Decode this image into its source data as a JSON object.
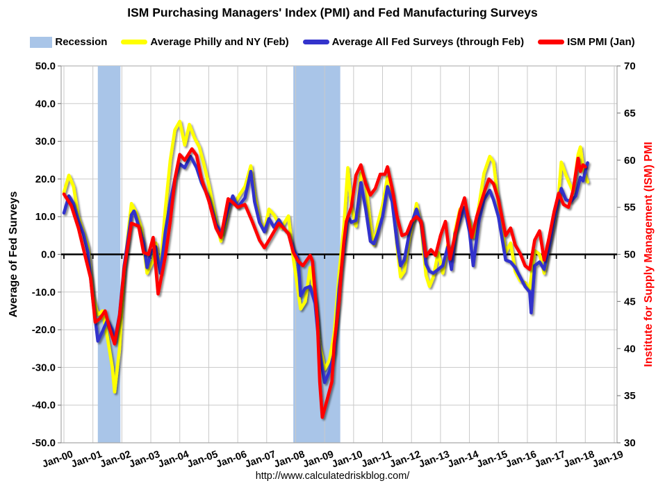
{
  "page": {
    "title": "ISM Purchasing Managers' Index (PMI) and Fed Manufacturing Surveys",
    "footer_url": "http://www.calculatedriskblog.com/"
  },
  "legend": [
    {
      "label": "Recession",
      "color": "#A9C5E8",
      "type": "box"
    },
    {
      "label": "Average Philly and NY (Feb)",
      "color": "#FFFF00",
      "type": "line"
    },
    {
      "label": "Average All Fed Surveys (through Feb)",
      "color": "#3333CC",
      "type": "line"
    },
    {
      "label": "ISM PMI (Jan)",
      "color": "#FF0000",
      "type": "line"
    }
  ],
  "chart_data": {
    "type": "line",
    "title": "ISM Purchasing Managers' Index (PMI) and Fed Manufacturing Surveys",
    "grid_color": "#C9C9C9",
    "border_color": "#A6A6A6",
    "zero_line_color": "#000000",
    "recession_color": "#A9C5E8",
    "left_axis": {
      "label": "Average of Fed Surveys",
      "min": -50,
      "max": 50,
      "tick_step": 10,
      "tick_values": [
        50,
        40,
        30,
        20,
        10,
        0,
        -10,
        -20,
        -30,
        -40,
        -50
      ],
      "tick_labels": [
        "50.0",
        "40.0",
        "30.0",
        "20.0",
        "10.0",
        "0.0",
        "-10.0",
        "-20.0",
        "-30.0",
        "-40.0",
        "-50.0"
      ],
      "color": "#000000"
    },
    "right_axis": {
      "label": "Institute for Supply Management (ISM) PMI",
      "min": 30,
      "max": 70,
      "tick_step": 5,
      "tick_values": [
        70,
        65,
        60,
        55,
        50,
        45,
        40,
        35,
        30
      ],
      "tick_labels": [
        "70",
        "65",
        "60",
        "55",
        "50",
        "45",
        "40",
        "35",
        "30"
      ],
      "color": "#FF0000"
    },
    "x_axis": {
      "tick_years": [
        2000,
        2001,
        2002,
        2003,
        2004,
        2005,
        2006,
        2007,
        2008,
        2009,
        2010,
        2011,
        2012,
        2013,
        2014,
        2015,
        2016,
        2017,
        2018,
        2019
      ],
      "tick_labels": [
        "Jan-00",
        "Jan-01",
        "Jan-02",
        "Jan-03",
        "Jan-04",
        "Jan-05",
        "Jan-06",
        "Jan-07",
        "Jan-08",
        "Jan-09",
        "Jan-10",
        "Jan-11",
        "Jan-12",
        "Jan-13",
        "Jan-14",
        "Jan-15",
        "Jan-16",
        "Jan-17",
        "Jan-18",
        "Jan-19"
      ]
    },
    "recession_bands": [
      {
        "from": 2001.17,
        "to": 2001.95
      },
      {
        "from": 2007.92,
        "to": 2009.54
      }
    ],
    "series": [
      {
        "name": "Average Philly and NY (Feb)",
        "axis": "left",
        "color": "#FFFF00",
        "x": [
          2000.0,
          2000.17,
          2000.33,
          2000.5,
          2000.67,
          2000.83,
          2001.0,
          2001.17,
          2001.33,
          2001.5,
          2001.67,
          2001.75,
          2001.92,
          2002.08,
          2002.33,
          2002.5,
          2002.67,
          2002.87,
          2003.08,
          2003.17,
          2003.33,
          2003.5,
          2003.67,
          2003.83,
          2004.0,
          2004.17,
          2004.33,
          2004.5,
          2004.67,
          2004.83,
          2005.0,
          2005.25,
          2005.42,
          2005.58,
          2005.75,
          2005.92,
          2006.08,
          2006.25,
          2006.45,
          2006.58,
          2006.75,
          2006.92,
          2007.08,
          2007.25,
          2007.5,
          2007.75,
          2007.92,
          2008.17,
          2008.33,
          2008.5,
          2008.67,
          2008.83,
          2009.0,
          2009.17,
          2009.33,
          2009.5,
          2009.67,
          2009.8,
          2009.92,
          2010.08,
          2010.25,
          2010.42,
          2010.58,
          2010.7,
          2010.83,
          2011.0,
          2011.17,
          2011.33,
          2011.5,
          2011.62,
          2011.75,
          2011.92,
          2012.08,
          2012.17,
          2012.33,
          2012.5,
          2012.62,
          2012.75,
          2012.92,
          2013.08,
          2013.25,
          2013.38,
          2013.5,
          2013.67,
          2013.83,
          2014.0,
          2014.13,
          2014.33,
          2014.5,
          2014.7,
          2014.83,
          2015.0,
          2015.25,
          2015.42,
          2015.58,
          2015.75,
          2015.92,
          2016.08,
          2016.25,
          2016.42,
          2016.58,
          2016.75,
          2016.92,
          2017.08,
          2017.17,
          2017.33,
          2017.5,
          2017.58,
          2017.75,
          2017.83,
          2017.92,
          2018.0,
          2018.08
        ],
        "y": [
          16.5,
          21.0,
          18.0,
          10.0,
          6.0,
          2.0,
          -11.0,
          -16.0,
          -15.0,
          -22.0,
          -30.0,
          -36.5,
          -25.0,
          -4.0,
          13.5,
          11.0,
          7.0,
          -5.0,
          -1.5,
          3.0,
          -3.5,
          12.0,
          25.0,
          33.0,
          35.3,
          29.0,
          34.5,
          31.0,
          28.5,
          24.0,
          18.5,
          9.0,
          3.5,
          8.0,
          14.5,
          14.0,
          16.0,
          18.0,
          23.5,
          16.0,
          9.0,
          6.5,
          12.0,
          10.5,
          7.0,
          10.2,
          -1.0,
          -14.5,
          -12.5,
          -3.5,
          -12.0,
          -24.0,
          -30.5,
          -28.0,
          -21.0,
          -5.0,
          8.0,
          23.0,
          13.0,
          7.5,
          21.5,
          19.0,
          8.0,
          2.5,
          8.0,
          13.0,
          20.5,
          16.0,
          2.0,
          -6.0,
          -4.5,
          4.0,
          9.5,
          13.5,
          7.5,
          -5.5,
          -8.5,
          -6.0,
          0.5,
          -5.0,
          2.5,
          -1.5,
          6.0,
          12.0,
          11.0,
          9.0,
          4.5,
          13.0,
          21.5,
          26.0,
          24.5,
          13.5,
          0.5,
          3.0,
          -4.5,
          -7.0,
          -7.5,
          -9.0,
          1.0,
          0.0,
          -5.0,
          2.5,
          8.5,
          16.0,
          24.5,
          21.0,
          18.0,
          16.5,
          26.5,
          28.5,
          23.0,
          21.0,
          19.2
        ]
      },
      {
        "name": "Average All Fed Surveys (through Feb)",
        "axis": "left",
        "color": "#3333CC",
        "x": [
          2000.0,
          2000.17,
          2000.33,
          2000.5,
          2000.67,
          2000.83,
          2001.0,
          2001.17,
          2001.33,
          2001.5,
          2001.67,
          2001.75,
          2001.92,
          2002.08,
          2002.33,
          2002.42,
          2002.58,
          2002.75,
          2002.87,
          2003.0,
          2003.17,
          2003.33,
          2003.5,
          2003.67,
          2003.83,
          2004.0,
          2004.17,
          2004.37,
          2004.58,
          2004.75,
          2005.0,
          2005.25,
          2005.45,
          2005.67,
          2005.83,
          2006.0,
          2006.25,
          2006.45,
          2006.58,
          2006.75,
          2006.92,
          2007.08,
          2007.25,
          2007.42,
          2007.58,
          2007.75,
          2007.92,
          2008.08,
          2008.17,
          2008.33,
          2008.5,
          2008.67,
          2008.83,
          2009.0,
          2009.17,
          2009.33,
          2009.5,
          2009.67,
          2009.8,
          2009.92,
          2010.08,
          2010.25,
          2010.42,
          2010.58,
          2010.7,
          2010.83,
          2011.0,
          2011.17,
          2011.33,
          2011.5,
          2011.62,
          2011.75,
          2011.92,
          2012.08,
          2012.17,
          2012.33,
          2012.5,
          2012.62,
          2012.75,
          2012.92,
          2013.08,
          2013.25,
          2013.38,
          2013.5,
          2013.67,
          2013.83,
          2014.0,
          2014.13,
          2014.33,
          2014.5,
          2014.7,
          2014.83,
          2015.0,
          2015.25,
          2015.42,
          2015.58,
          2015.75,
          2015.92,
          2016.08,
          2016.13,
          2016.25,
          2016.42,
          2016.58,
          2016.75,
          2016.92,
          2017.08,
          2017.17,
          2017.33,
          2017.5,
          2017.67,
          2017.83,
          2017.92,
          2018.0,
          2018.08
        ],
        "y": [
          11.0,
          15.5,
          13.5,
          9.0,
          5.5,
          0.5,
          -12.0,
          -23.0,
          -20.5,
          -17.5,
          -20.0,
          -23.0,
          -16.0,
          -3.0,
          10.5,
          11.5,
          7.5,
          3.0,
          -3.5,
          0.5,
          2.0,
          -5.0,
          6.0,
          14.0,
          20.0,
          24.0,
          23.0,
          26.0,
          23.0,
          19.0,
          15.0,
          8.0,
          5.5,
          12.0,
          15.5,
          12.5,
          15.0,
          22.0,
          14.0,
          8.5,
          6.0,
          9.5,
          7.2,
          9.2,
          7.0,
          5.5,
          1.5,
          -1.0,
          -11.0,
          -9.0,
          -8.5,
          -13.0,
          -26.0,
          -34.0,
          -31.0,
          -26.0,
          -9.0,
          2.0,
          10.0,
          8.5,
          9.0,
          19.0,
          12.0,
          3.5,
          2.8,
          5.5,
          10.0,
          18.0,
          14.0,
          3.0,
          -3.0,
          -1.5,
          5.5,
          10.0,
          12.0,
          8.0,
          -2.5,
          -4.5,
          -5.0,
          -4.0,
          -3.0,
          2.0,
          -4.0,
          5.5,
          9.0,
          12.5,
          6.0,
          -3.0,
          9.0,
          14.5,
          17.0,
          14.5,
          10.0,
          -1.5,
          -2.0,
          -3.5,
          -6.0,
          -8.5,
          -10.0,
          -15.5,
          -3.0,
          -2.0,
          -4.0,
          2.0,
          9.0,
          15.0,
          17.5,
          14.5,
          14.0,
          15.5,
          20.5,
          19.5,
          22.0,
          24.3
        ]
      },
      {
        "name": "ISM PMI (Jan)",
        "axis": "right",
        "color": "#FF0000",
        "x": [
          2000.0,
          2000.25,
          2000.5,
          2000.75,
          2000.92,
          2001.08,
          2001.25,
          2001.42,
          2001.58,
          2001.75,
          2001.92,
          2002.08,
          2002.33,
          2002.58,
          2002.75,
          2002.92,
          2003.08,
          2003.25,
          2003.5,
          2003.67,
          2003.83,
          2004.0,
          2004.17,
          2004.42,
          2004.58,
          2004.75,
          2005.0,
          2005.25,
          2005.42,
          2005.67,
          2005.83,
          2006.0,
          2006.25,
          2006.5,
          2006.75,
          2006.92,
          2007.08,
          2007.42,
          2007.58,
          2007.75,
          2007.92,
          2008.08,
          2008.25,
          2008.5,
          2008.58,
          2008.75,
          2008.83,
          2008.92,
          2009.08,
          2009.25,
          2009.33,
          2009.5,
          2009.58,
          2009.67,
          2009.75,
          2009.92,
          2010.08,
          2010.25,
          2010.42,
          2010.58,
          2010.75,
          2010.92,
          2011.08,
          2011.17,
          2011.33,
          2011.5,
          2011.67,
          2011.83,
          2012.0,
          2012.17,
          2012.33,
          2012.5,
          2012.67,
          2012.83,
          2013.0,
          2013.17,
          2013.33,
          2013.5,
          2013.67,
          2013.83,
          2014.08,
          2014.25,
          2014.5,
          2014.67,
          2014.83,
          2015.0,
          2015.25,
          2015.42,
          2015.58,
          2015.75,
          2015.92,
          2016.08,
          2016.25,
          2016.42,
          2016.58,
          2016.75,
          2016.92,
          2017.08,
          2017.25,
          2017.42,
          2017.58,
          2017.75,
          2017.83,
          2017.92,
          2018.0
        ],
        "y": [
          56.4,
          55.2,
          52.8,
          49.6,
          47.5,
          42.8,
          43.2,
          44.0,
          42.1,
          40.5,
          43.5,
          48.5,
          53.3,
          53.0,
          50.2,
          50.0,
          51.8,
          45.8,
          49.8,
          53.5,
          58.0,
          60.6,
          60.0,
          61.2,
          60.5,
          58.0,
          55.7,
          52.8,
          51.8,
          55.9,
          55.5,
          55.0,
          55.3,
          53.5,
          51.5,
          50.7,
          51.5,
          53.3,
          52.8,
          52.2,
          50.2,
          49.3,
          48.8,
          49.9,
          49.3,
          43.0,
          36.5,
          32.7,
          34.5,
          36.5,
          40.5,
          45.0,
          48.5,
          51.5,
          53.5,
          55.0,
          58.4,
          59.5,
          57.5,
          56.3,
          57.0,
          58.5,
          58.5,
          59.3,
          57.0,
          54.0,
          52.0,
          52.2,
          53.5,
          54.0,
          53.5,
          49.8,
          50.5,
          49.9,
          52.0,
          53.5,
          49.5,
          52.0,
          54.5,
          56.0,
          51.8,
          54.0,
          56.5,
          58.0,
          57.5,
          55.8,
          52.0,
          52.8,
          51.0,
          50.1,
          48.8,
          48.4,
          51.5,
          52.5,
          49.4,
          51.8,
          54.5,
          56.5,
          55.3,
          55.0,
          56.8,
          60.2,
          58.8,
          59.5,
          59.3
        ]
      }
    ]
  }
}
